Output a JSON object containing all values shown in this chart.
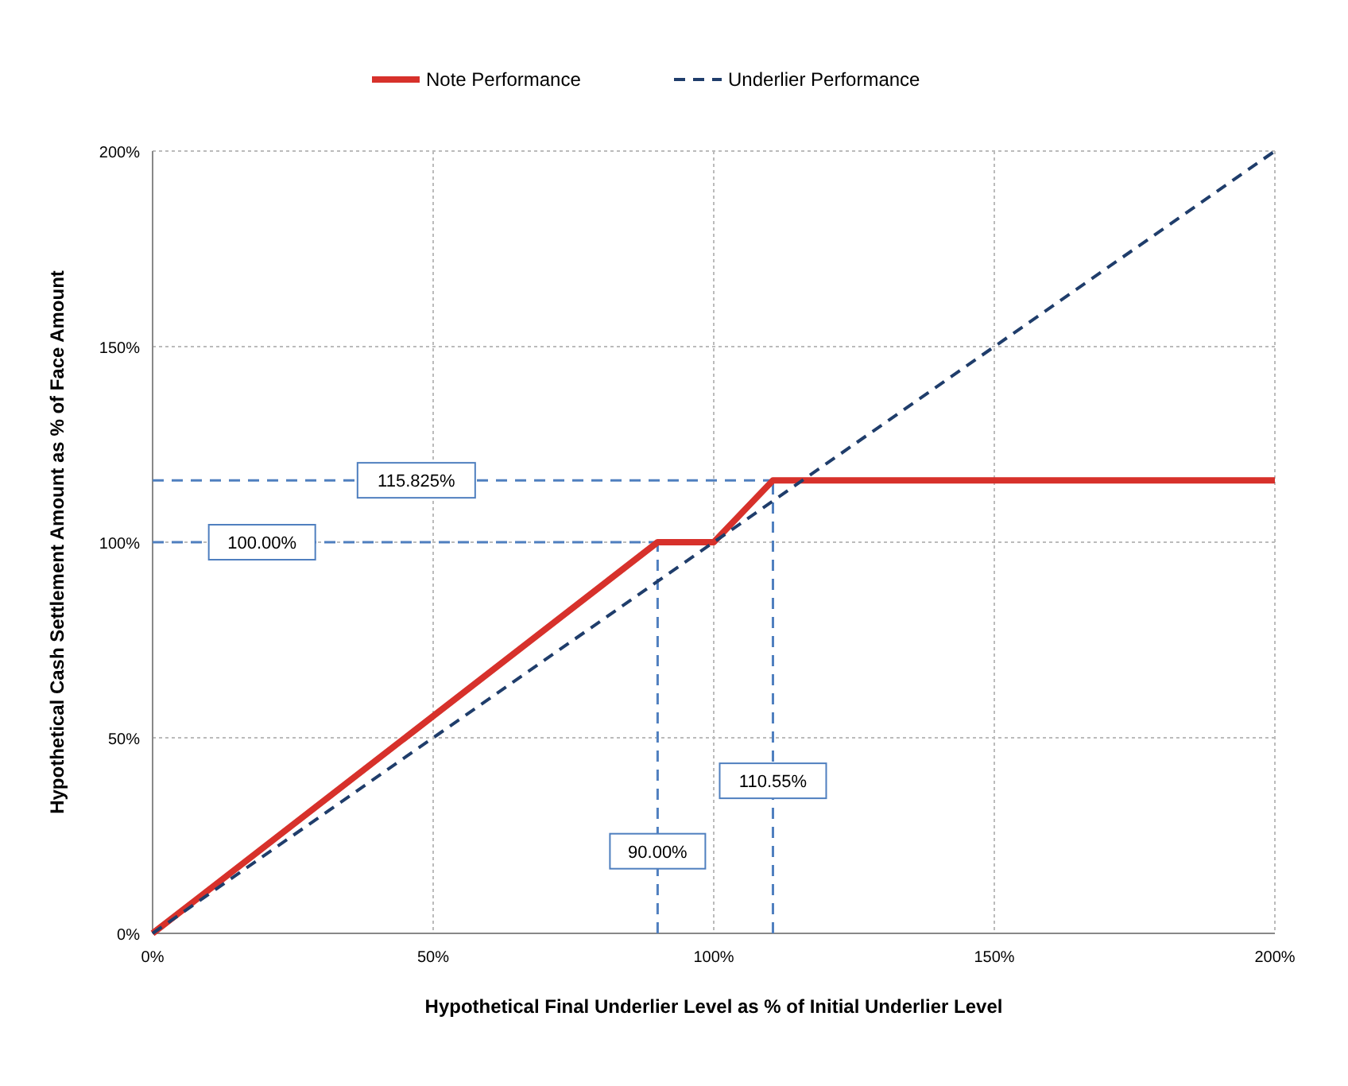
{
  "chart_data": {
    "type": "line",
    "xlabel": "Hypothetical Final Underlier Level as % of Initial Underlier Level",
    "ylabel": "Hypothetical Cash Settlement Amount as % of Face Amount",
    "series": [
      {
        "name": "Note Performance",
        "color": "#d7312b",
        "line_style": "solid",
        "x": [
          0,
          90,
          100,
          110.55,
          200
        ],
        "values": [
          0,
          100,
          100,
          115.825,
          115.825
        ]
      },
      {
        "name": "Underlier Performance",
        "color": "#1f3d6b",
        "line_style": "dashed",
        "x": [
          0,
          200
        ],
        "values": [
          0,
          200
        ]
      }
    ],
    "xlim": [
      0,
      200
    ],
    "ylim": [
      0,
      200
    ],
    "xticks": [
      {
        "value": 0,
        "label": "0%"
      },
      {
        "value": 50,
        "label": "50%"
      },
      {
        "value": 100,
        "label": "100%"
      },
      {
        "value": 150,
        "label": "150%"
      },
      {
        "value": 200,
        "label": "200%"
      }
    ],
    "yticks": [
      {
        "value": 0,
        "label": "0%"
      },
      {
        "value": 50,
        "label": "50%"
      },
      {
        "value": 100,
        "label": "100%"
      },
      {
        "value": 150,
        "label": "150%"
      },
      {
        "value": 200,
        "label": "200%"
      }
    ],
    "ref_lines": [
      {
        "axis": "y",
        "value": 115.825,
        "color": "#4f7fbf",
        "line_style": "dashed"
      },
      {
        "axis": "y",
        "value": 100,
        "color": "#4f7fbf",
        "line_style": "dashed"
      },
      {
        "axis": "x",
        "value": 90,
        "color": "#4f7fbf",
        "line_style": "dashed"
      },
      {
        "axis": "x",
        "value": 110.55,
        "color": "#4f7fbf",
        "line_style": "dashed"
      }
    ],
    "annotations": [
      {
        "text": "115.825%",
        "x": 47,
        "y": 115.825
      },
      {
        "text": "100.00%",
        "x": 19.5,
        "y": 100
      },
      {
        "text": "90.00%",
        "x": 90,
        "y": 21
      },
      {
        "text": "110.55%",
        "x": 110.55,
        "y": 39
      }
    ],
    "grid": true,
    "legend": "top"
  }
}
